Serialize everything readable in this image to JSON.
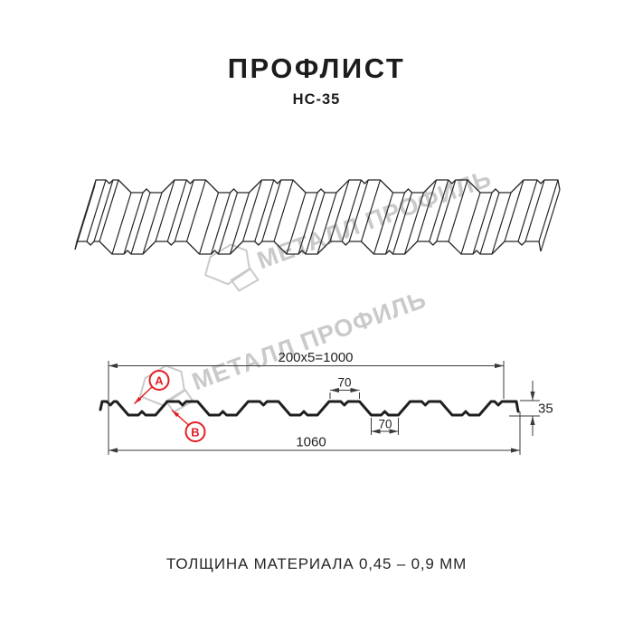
{
  "header": {
    "title": "ПРОФЛИСТ",
    "subtitle": "НС-35"
  },
  "watermark": {
    "text": "МЕТАЛЛ ПРОФИЛЬ"
  },
  "section": {
    "dim_top": "200x5=1000",
    "dim_crest": "70",
    "dim_trough": "70",
    "dim_total": "1060",
    "dim_height": "35",
    "label_a": "А",
    "label_b": "В"
  },
  "footer": {
    "thickness": "ТОЛЩИНА МАТЕРИАЛА 0,45 – 0,9 ММ"
  },
  "colors": {
    "line": "#262626",
    "red": "#e31e24",
    "watermark": "#cacaca"
  }
}
